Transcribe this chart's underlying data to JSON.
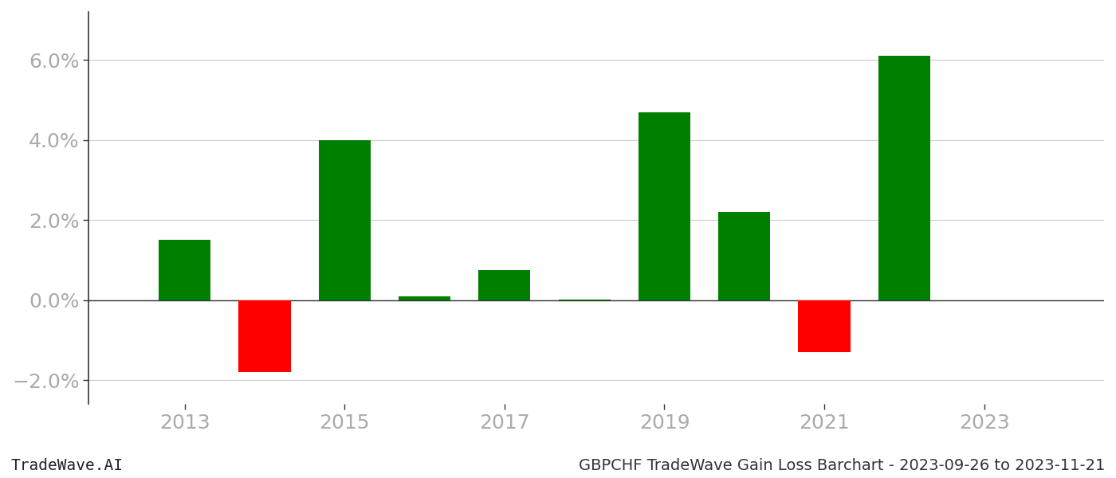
{
  "years": [
    2013,
    2014,
    2015,
    2016,
    2017,
    2018,
    2019,
    2020,
    2021,
    2022
  ],
  "values": [
    0.015,
    -0.018,
    0.04,
    0.001,
    0.0075,
    0.0002,
    0.047,
    0.022,
    -0.013,
    0.061
  ],
  "colors": [
    "#008000",
    "#ff0000",
    "#008000",
    "#008000",
    "#008000",
    "#008000",
    "#008000",
    "#008000",
    "#ff0000",
    "#008000"
  ],
  "ylim": [
    -0.026,
    0.072
  ],
  "yticks": [
    -0.02,
    0.0,
    0.02,
    0.04,
    0.06
  ],
  "xticks": [
    2013,
    2015,
    2017,
    2019,
    2021,
    2023
  ],
  "title": "GBPCHF TradeWave Gain Loss Barchart - 2023-09-26 to 2023-11-21",
  "watermark": "TradeWave.AI",
  "bar_width": 0.65,
  "background_color": "#ffffff",
  "grid_color": "#cccccc",
  "title_fontsize": 14,
  "watermark_fontsize": 14,
  "tick_fontsize": 18,
  "tick_color": "#aaaaaa",
  "axis_color": "#333333",
  "spine_color": "#333333"
}
